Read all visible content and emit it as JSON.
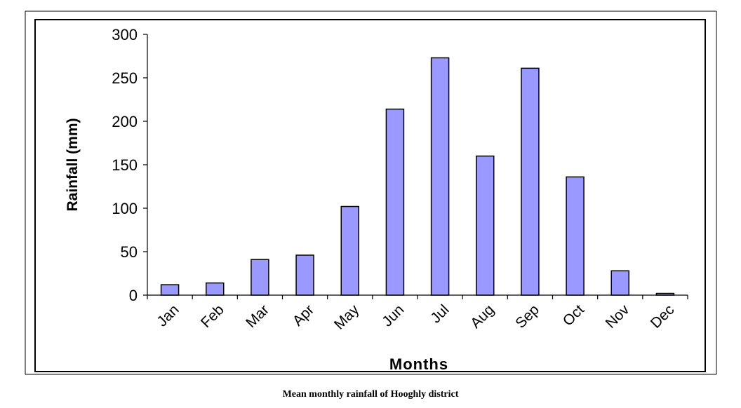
{
  "caption": "Mean monthly rainfall of Hooghly district",
  "chart_data": {
    "type": "bar",
    "title": "",
    "xlabel": "Months",
    "ylabel": "Rainfall (mm)",
    "categories": [
      "Jan",
      "Feb",
      "Mar",
      "Apr",
      "May",
      "Jun",
      "Jul",
      "Aug",
      "Sep",
      "Oct",
      "Nov",
      "Dec"
    ],
    "values": [
      12,
      14,
      41,
      46,
      102,
      214,
      273,
      160,
      261,
      136,
      28,
      2
    ],
    "ylim": [
      0,
      300
    ],
    "yticks": [
      0,
      50,
      100,
      150,
      200,
      250,
      300
    ],
    "grid": false,
    "legend": "none",
    "colors": {
      "bar_fill": "#9999ff",
      "bar_stroke": "#000000",
      "axis": "#000000"
    }
  }
}
